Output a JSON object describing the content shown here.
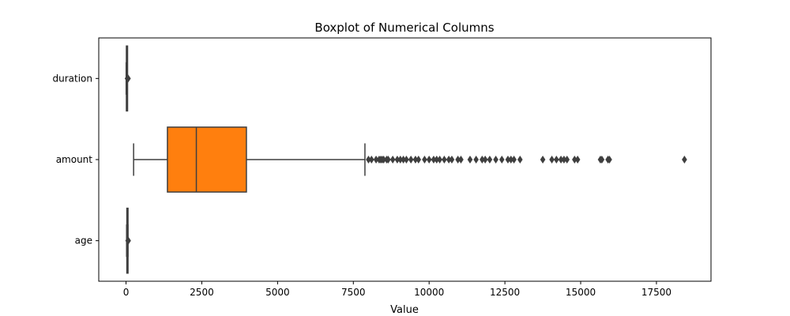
{
  "chart_data": {
    "type": "boxplot",
    "title": "Boxplot of Numerical Columns",
    "xlabel": "Value",
    "ylabel": "",
    "xlim": [
      -900,
      19300
    ],
    "xticks": [
      0,
      2500,
      5000,
      7500,
      10000,
      12500,
      15000,
      17500
    ],
    "grid": false,
    "categories": [
      "duration",
      "amount",
      "age"
    ],
    "colors": [
      "#1f77b4",
      "#ff7f0e",
      "#2ca02c"
    ],
    "series": [
      {
        "category": "duration",
        "whisker_low": 4,
        "q1": 12,
        "median": 18,
        "q3": 24,
        "whisker_high": 42,
        "outliers": [
          45,
          47,
          48,
          54,
          60,
          72
        ]
      },
      {
        "category": "amount",
        "whisker_low": 250,
        "q1": 1366,
        "median": 2320,
        "q3": 3972,
        "whisker_high": 7882,
        "outliers": [
          8000,
          8100,
          8250,
          8350,
          8400,
          8450,
          8500,
          8600,
          8650,
          8800,
          8950,
          9050,
          9150,
          9250,
          9400,
          9550,
          9650,
          9850,
          10000,
          10150,
          10250,
          10350,
          10500,
          10650,
          10750,
          10950,
          11050,
          11350,
          11550,
          11750,
          11850,
          12000,
          12200,
          12400,
          12600,
          12700,
          12800,
          13000,
          13750,
          14050,
          14200,
          14350,
          14450,
          14550,
          14800,
          14900,
          15650,
          15700,
          15900,
          15950,
          18424
        ]
      },
      {
        "category": "age",
        "whisker_low": 19,
        "q1": 27,
        "median": 33,
        "q3": 42,
        "whisker_high": 64,
        "outliers": [
          65,
          66,
          67,
          68,
          70,
          74,
          75
        ]
      }
    ]
  }
}
